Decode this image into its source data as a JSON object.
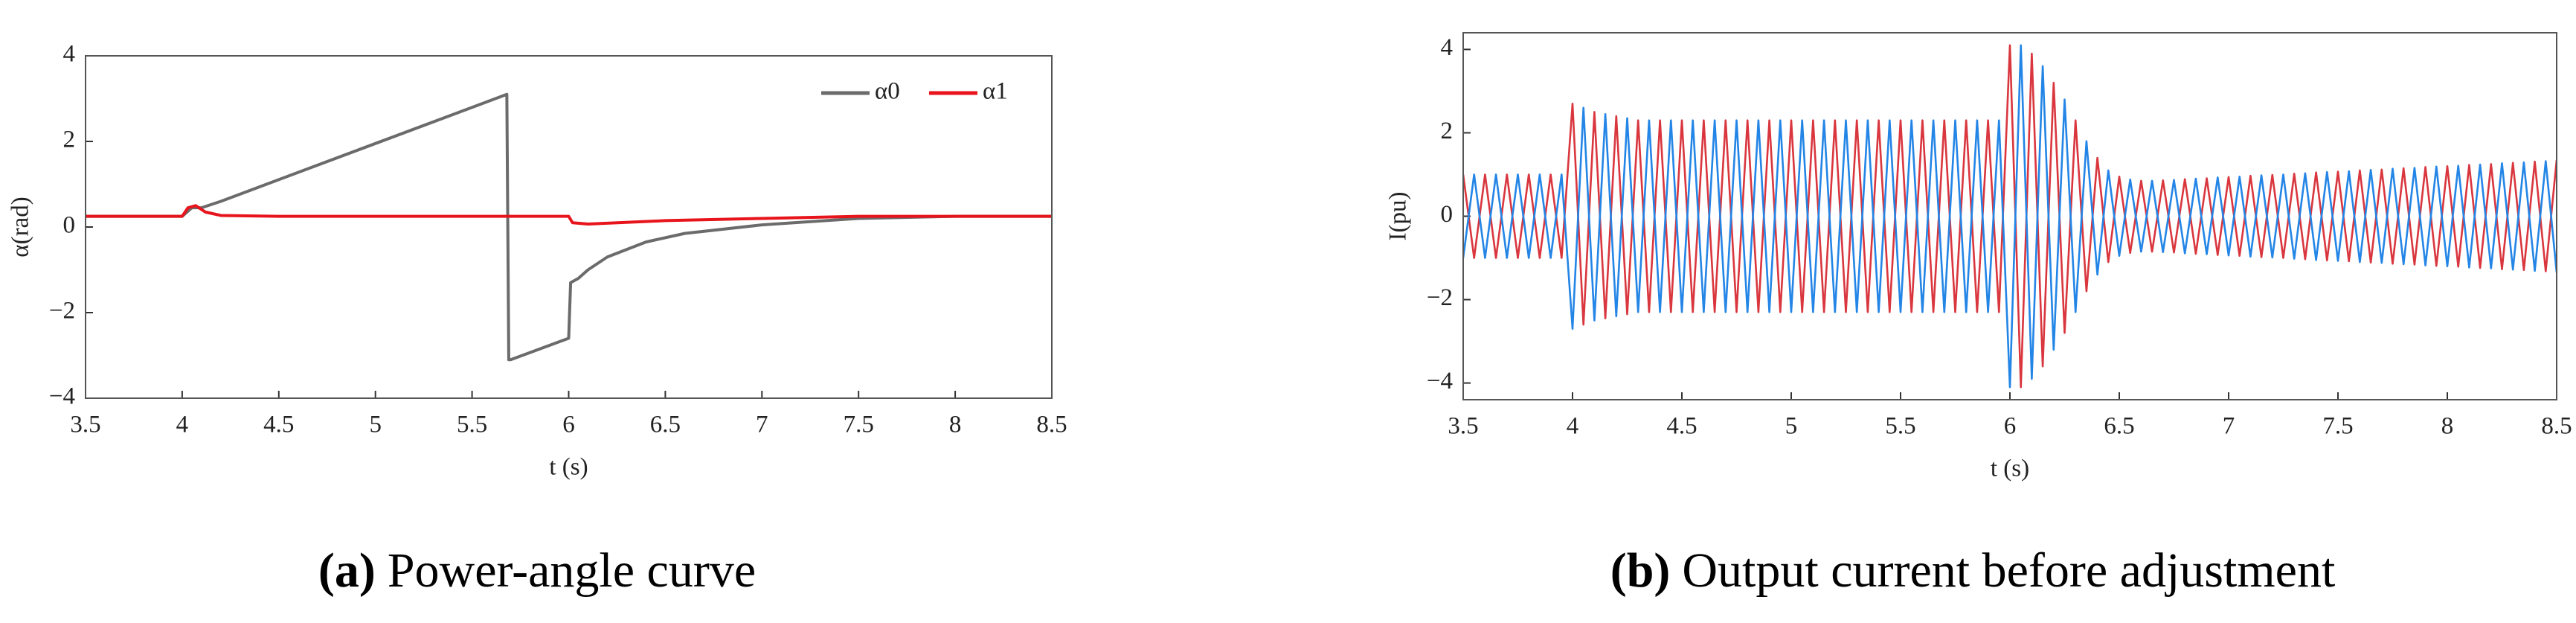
{
  "chart_data": [
    {
      "type": "line",
      "caption_tag": "(a)",
      "caption": "Power-angle curve",
      "xlabel": "t (s)",
      "ylabel": "α(rad)",
      "xlim": [
        3.5,
        8.5
      ],
      "ylim": [
        -4,
        4
      ],
      "xticks": [
        3.5,
        4,
        4.5,
        5,
        5.5,
        6,
        6.5,
        7,
        7.5,
        8,
        8.5
      ],
      "yticks": [
        {
          "value": -4,
          "label": "−4"
        },
        {
          "value": -2,
          "label": "−2"
        },
        0,
        2,
        4
      ],
      "legend": "upper right",
      "series": [
        {
          "name": "α0",
          "color": "#6b6b6b",
          "x": [
            3.5,
            4.0,
            4.05,
            4.1,
            4.2,
            5.68,
            5.69,
            5.7,
            6.0,
            6.01,
            6.05,
            6.1,
            6.2,
            6.4,
            6.6,
            7.0,
            7.5,
            8.0,
            8.5
          ],
          "values": [
            0.25,
            0.25,
            0.45,
            0.45,
            0.6,
            3.1,
            -3.1,
            -3.1,
            -2.6,
            -1.3,
            -1.2,
            -1.0,
            -0.7,
            -0.35,
            -0.15,
            0.05,
            0.2,
            0.25,
            0.25
          ]
        },
        {
          "name": "α1",
          "color": "#e8141c",
          "x": [
            3.5,
            4.0,
            4.03,
            4.07,
            4.12,
            4.2,
            4.5,
            6.0,
            6.02,
            6.1,
            6.5,
            7.0,
            7.5,
            8.5
          ],
          "values": [
            0.25,
            0.25,
            0.45,
            0.5,
            0.35,
            0.27,
            0.25,
            0.25,
            0.1,
            0.07,
            0.15,
            0.2,
            0.25,
            0.25
          ]
        }
      ]
    },
    {
      "type": "line",
      "caption_tag": "(b)",
      "caption": "Output current before adjustment",
      "xlabel": "t (s)",
      "ylabel": "I(pu)",
      "xlim": [
        3.5,
        8.5
      ],
      "ylim": [
        -4.4,
        4.4
      ],
      "xticks": [
        3.5,
        4,
        4.5,
        5,
        5.5,
        6,
        6.5,
        7,
        7.5,
        8,
        8.5
      ],
      "yticks": [
        {
          "value": -4,
          "label": "−4"
        },
        {
          "value": -2,
          "label": "−2"
        },
        0,
        2,
        4
      ],
      "series": [
        {
          "color": "#d9363e",
          "x": [
            3.5,
            3.55,
            3.6,
            3.65,
            3.7,
            3.75,
            3.8,
            3.85,
            3.9,
            3.95,
            4,
            4.05,
            4.1,
            4.15,
            4.2,
            4.25,
            4.3,
            4.35,
            4.4,
            4.45,
            4.5,
            4.55,
            4.6,
            4.65,
            4.7,
            4.75,
            4.8,
            4.85,
            4.9,
            4.95,
            5,
            5.05,
            5.1,
            5.15,
            5.2,
            5.25,
            5.3,
            5.35,
            5.4,
            5.45,
            5.5,
            5.55,
            5.6,
            5.65,
            5.7,
            5.75,
            5.8,
            5.85,
            5.9,
            5.95,
            6,
            6.05,
            6.1,
            6.15,
            6.2,
            6.25,
            6.3,
            6.35,
            6.4,
            6.45,
            6.5,
            6.55,
            6.6,
            6.65,
            6.7,
            6.75,
            6.8,
            6.85,
            6.9,
            6.95,
            7,
            7.05,
            7.1,
            7.15,
            7.2,
            7.25,
            7.3,
            7.35,
            7.4,
            7.45,
            7.5,
            7.55,
            7.6,
            7.65,
            7.7,
            7.75,
            7.8,
            7.85,
            7.9,
            7.95,
            8,
            8.05,
            8.1,
            8.15,
            8.2,
            8.25,
            8.3,
            8.35,
            8.4,
            8.45,
            8.5
          ],
          "values": [
            1,
            -1,
            1,
            -1,
            1,
            -1,
            1,
            -1,
            1,
            -1,
            2.7,
            -2.6,
            2.5,
            -2.45,
            2.4,
            -2.35,
            2.3,
            -2.3,
            2.3,
            -2.3,
            2.3,
            -2.3,
            2.3,
            -2.3,
            2.3,
            -2.3,
            2.3,
            -2.3,
            2.3,
            -2.3,
            2.3,
            -2.3,
            2.3,
            -2.3,
            2.3,
            -2.3,
            2.3,
            -2.3,
            2.3,
            -2.3,
            2.3,
            -2.3,
            2.3,
            -2.3,
            2.3,
            -2.3,
            2.3,
            -2.3,
            2.3,
            -2.3,
            4.1,
            -4.1,
            3.9,
            -3.6,
            3.2,
            -2.8,
            2.3,
            -1.8,
            1.4,
            -1.1,
            0.95,
            -0.88,
            0.85,
            -0.85,
            0.86,
            -0.87,
            0.89,
            -0.9,
            0.91,
            -0.93,
            0.94,
            -0.95,
            0.97,
            -0.98,
            0.99,
            -1.0,
            1.02,
            -1.03,
            1.05,
            -1.06,
            1.07,
            -1.08,
            1.1,
            -1.11,
            1.12,
            -1.14,
            1.15,
            -1.16,
            1.18,
            -1.19,
            1.2,
            -1.21,
            1.23,
            -1.24,
            1.25,
            -1.27,
            1.28,
            -1.29,
            1.31,
            -1.32,
            1.35
          ]
        },
        {
          "color": "#2385e6",
          "x": [
            3.5,
            3.55,
            3.6,
            3.65,
            3.7,
            3.75,
            3.8,
            3.85,
            3.9,
            3.95,
            4,
            4.05,
            4.1,
            4.15,
            4.2,
            4.25,
            4.3,
            4.35,
            4.4,
            4.45,
            4.5,
            4.55,
            4.6,
            4.65,
            4.7,
            4.75,
            4.8,
            4.85,
            4.9,
            4.95,
            5,
            5.05,
            5.1,
            5.15,
            5.2,
            5.25,
            5.3,
            5.35,
            5.4,
            5.45,
            5.5,
            5.55,
            5.6,
            5.65,
            5.7,
            5.75,
            5.8,
            5.85,
            5.9,
            5.95,
            6,
            6.05,
            6.1,
            6.15,
            6.2,
            6.25,
            6.3,
            6.35,
            6.4,
            6.45,
            6.5,
            6.55,
            6.6,
            6.65,
            6.7,
            6.75,
            6.8,
            6.85,
            6.9,
            6.95,
            7,
            7.05,
            7.1,
            7.15,
            7.2,
            7.25,
            7.3,
            7.35,
            7.4,
            7.45,
            7.5,
            7.55,
            7.6,
            7.65,
            7.7,
            7.75,
            7.8,
            7.85,
            7.9,
            7.95,
            8,
            8.05,
            8.1,
            8.15,
            8.2,
            8.25,
            8.3,
            8.35,
            8.4,
            8.45,
            8.5
          ],
          "values": [
            -1,
            1,
            -1,
            1,
            -1,
            1,
            -1,
            1,
            -1,
            1,
            -2.7,
            2.6,
            -2.5,
            2.45,
            -2.4,
            2.35,
            -2.3,
            2.3,
            -2.3,
            2.3,
            -2.3,
            2.3,
            -2.3,
            2.3,
            -2.3,
            2.3,
            -2.3,
            2.3,
            -2.3,
            2.3,
            -2.3,
            2.3,
            -2.3,
            2.3,
            -2.3,
            2.3,
            -2.3,
            2.3,
            -2.3,
            2.3,
            -2.3,
            2.3,
            -2.3,
            2.3,
            -2.3,
            2.3,
            -2.3,
            2.3,
            -2.3,
            2.3,
            -4.1,
            4.1,
            -3.9,
            3.6,
            -3.2,
            2.8,
            -2.3,
            1.8,
            -1.4,
            1.1,
            -0.95,
            0.88,
            -0.85,
            0.85,
            -0.86,
            0.87,
            -0.89,
            0.9,
            -0.91,
            0.93,
            -0.94,
            0.95,
            -0.97,
            0.98,
            -0.99,
            1.0,
            -1.02,
            1.03,
            -1.05,
            1.06,
            -1.07,
            1.08,
            -1.1,
            1.11,
            -1.12,
            1.14,
            -1.15,
            1.16,
            -1.18,
            1.19,
            -1.2,
            1.21,
            -1.23,
            1.24,
            -1.25,
            1.27,
            -1.28,
            1.29,
            -1.31,
            1.32,
            -1.35
          ]
        }
      ]
    }
  ]
}
